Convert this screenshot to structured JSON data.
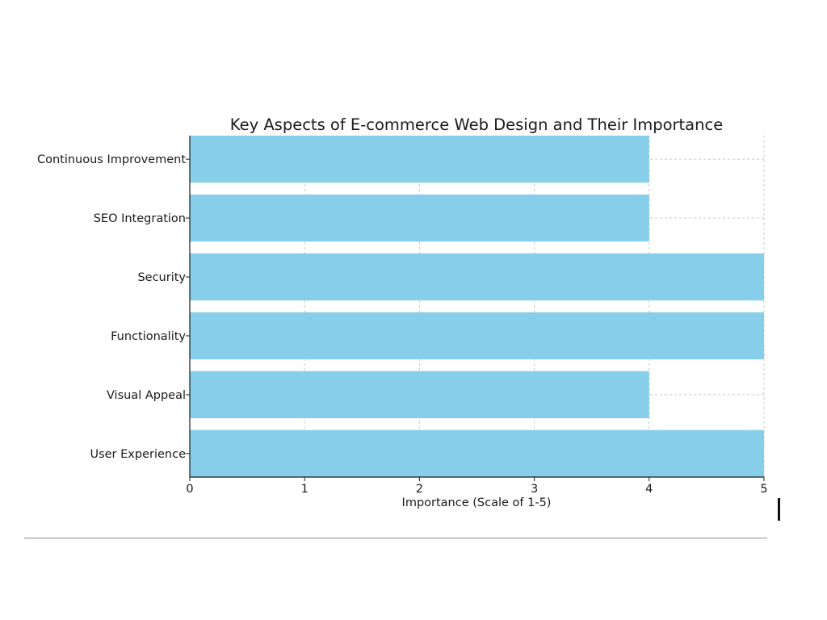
{
  "chart_data": {
    "type": "bar",
    "orientation": "horizontal",
    "title": "Key Aspects of E-commerce Web Design and Their Importance",
    "xlabel": "Importance (Scale of 1-5)",
    "ylabel": "",
    "categories": [
      "User Experience",
      "Visual Appeal",
      "Functionality",
      "Security",
      "SEO Integration",
      "Continuous Improvement"
    ],
    "values": [
      5,
      4,
      5,
      5,
      4,
      4
    ],
    "xlim": [
      0,
      5
    ],
    "x_ticks": [
      "0",
      "1",
      "2",
      "3",
      "4",
      "5"
    ],
    "grid": true,
    "bar_color": "#87ceeb"
  }
}
